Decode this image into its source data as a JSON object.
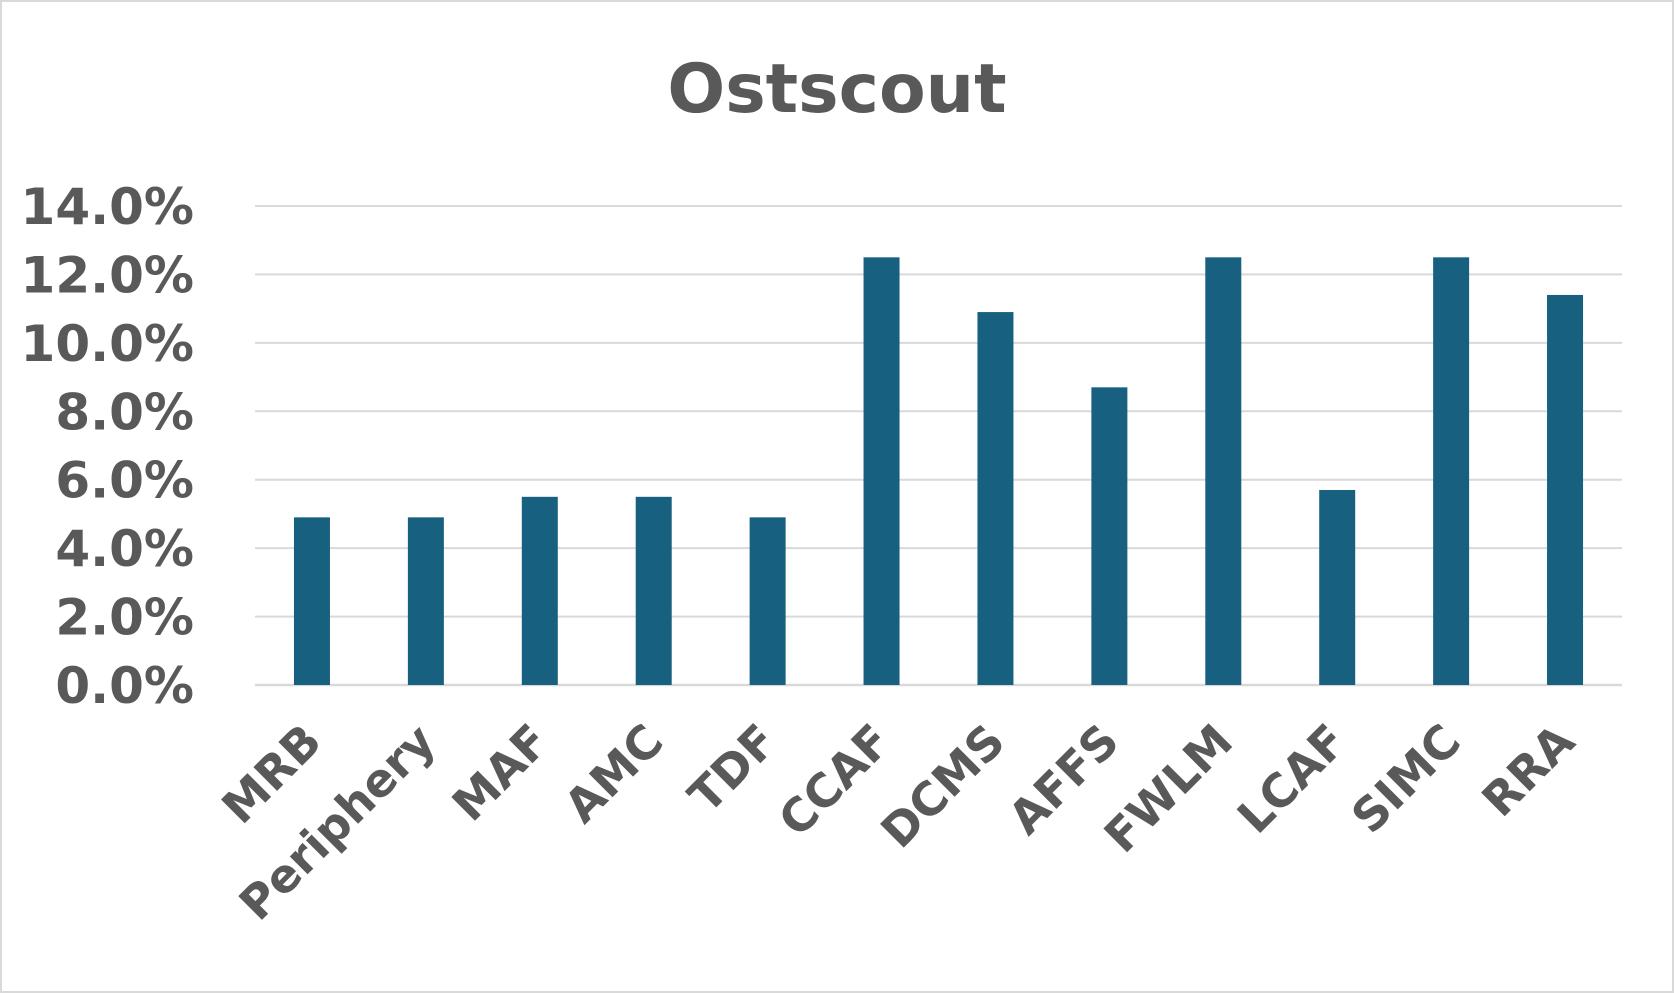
{
  "chart_data": {
    "type": "bar",
    "title": "Ostscout",
    "xlabel": "",
    "ylabel": "",
    "categories": [
      "MRB",
      "Periphery",
      "MAF",
      "AMC",
      "TDF",
      "CCAF",
      "DCMS",
      "AFFS",
      "FWLM",
      "LCAF",
      "SIMC",
      "RRA"
    ],
    "values": [
      4.9,
      4.9,
      5.5,
      5.5,
      4.9,
      12.5,
      10.9,
      8.7,
      12.5,
      5.7,
      12.5,
      11.4
    ],
    "ylim": [
      0,
      14
    ],
    "yticks": [
      "0.0%",
      "2.0%",
      "4.0%",
      "6.0%",
      "8.0%",
      "10.0%",
      "12.0%",
      "14.0%"
    ],
    "grid": true,
    "legend": "none",
    "bar_color": "#17607f",
    "grid_color": "#d9d9d9",
    "text_color": "#595959"
  }
}
